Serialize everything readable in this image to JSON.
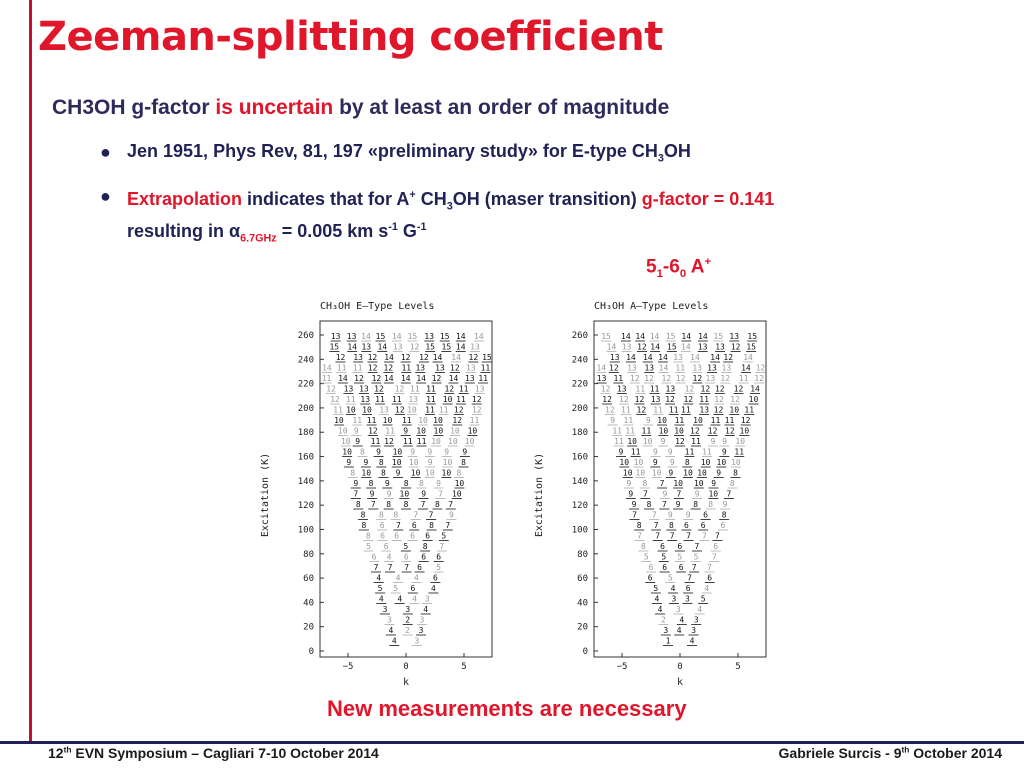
{
  "slide": {
    "title": "Zeeman-splitting coefficient",
    "subtitle_a": "CH3OH g-factor ",
    "subtitle_b": "is uncertain",
    "subtitle_c": " by at least an order of magnitude",
    "bullet1": "Jen 1951, Phys Rev, 81, 197 «preliminary study» for E-type CH",
    "bullet1_tail": "OH",
    "bullet2_a": "Extrapolation",
    "bullet2_b": " indicates that for A",
    "bullet2_c": " CH",
    "bullet2_d": "OH (maser transition) ",
    "bullet2_e": "g-factor = 0.141",
    "bullet2_f": "resulting in α",
    "bullet2_g": "6.7GHz",
    "bullet2_h": " = 0.005 km s",
    "bullet2_i": " G",
    "transition": "5",
    "cta": "New measurements  are necessary"
  },
  "figures": {
    "left": {
      "title": "CH₃OH  E–Type Levels",
      "ylabel": "Excitation (K)",
      "xlabel": "k",
      "yticks": [
        "260",
        "240",
        "220",
        "200",
        "180",
        "160",
        "140",
        "120",
        "100",
        "80",
        "60",
        "40",
        "20",
        "0"
      ],
      "xticks": [
        "−5",
        "0",
        "5"
      ]
    },
    "right": {
      "title": "CH₃OH  A–Type Levels",
      "ylabel": "Excitation (K)",
      "xlabel": "k",
      "yticks": [
        "260",
        "240",
        "220",
        "200",
        "180",
        "160",
        "140",
        "120",
        "100",
        "80",
        "60",
        "40",
        "20",
        "0"
      ],
      "xticks": [
        "−5",
        "0",
        "5"
      ]
    }
  },
  "footer": {
    "left": "12th EVN Symposium – Cagliari 7-10 October 2014",
    "right": "Gabriele Surcis -  9th October 2014"
  }
}
